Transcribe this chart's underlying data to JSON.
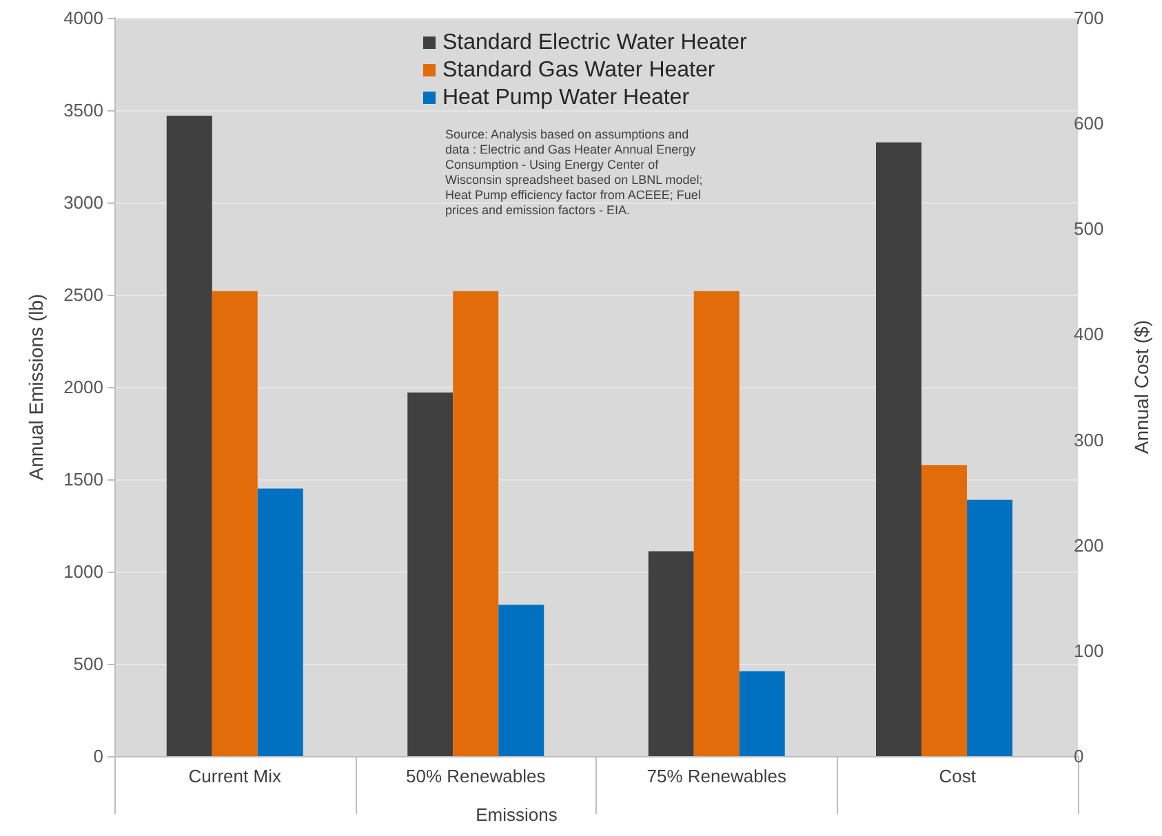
{
  "chart_data": {
    "type": "bar",
    "categories": [
      "Current Mix",
      "50% Renewables",
      "75% Renewables",
      "Cost"
    ],
    "xlabel": "Emissions",
    "ylabel": "Annual Emissions (lb)",
    "y2label": "Annual Cost ($)",
    "series": [
      {
        "name": "Standard Electric Water Heater",
        "color": "#404040",
        "values": [
          3470,
          1970,
          1110,
          null
        ]
      },
      {
        "name": "Standard Gas Water Heater",
        "color": "#e36c0a",
        "values": [
          2520,
          2520,
          2520,
          null
        ]
      },
      {
        "name": "Heat Pump Water Heater",
        "color": "#0070c0",
        "values": [
          1450,
          820,
          460,
          null
        ]
      },
      {
        "color": "#404040",
        "axis": "y2",
        "values": [
          null,
          null,
          null,
          582
        ]
      },
      {
        "color": "#e36c0a",
        "axis": "y2",
        "values": [
          null,
          null,
          null,
          276
        ]
      },
      {
        "color": "#0070c0",
        "axis": "y2",
        "values": [
          null,
          null,
          null,
          243
        ]
      }
    ],
    "ylim": [
      0,
      4000
    ],
    "yticks": [
      0,
      500,
      1000,
      1500,
      2000,
      2500,
      3000,
      3500,
      4000
    ],
    "y2lim": [
      0,
      700
    ],
    "y2ticks": [
      0,
      100,
      200,
      300,
      400,
      500,
      600,
      700
    ],
    "grid": "y",
    "legend": "top",
    "annotations": [
      "Source: Analysis based on assumptions and data : Electric and Gas Heater Annual Energy Consumption - Using Energy Center of Wisconsin spreadsheet based on LBNL model; Heat Pump efficiency factor from ACEEE; Fuel prices and emission factors - EIA."
    ]
  }
}
